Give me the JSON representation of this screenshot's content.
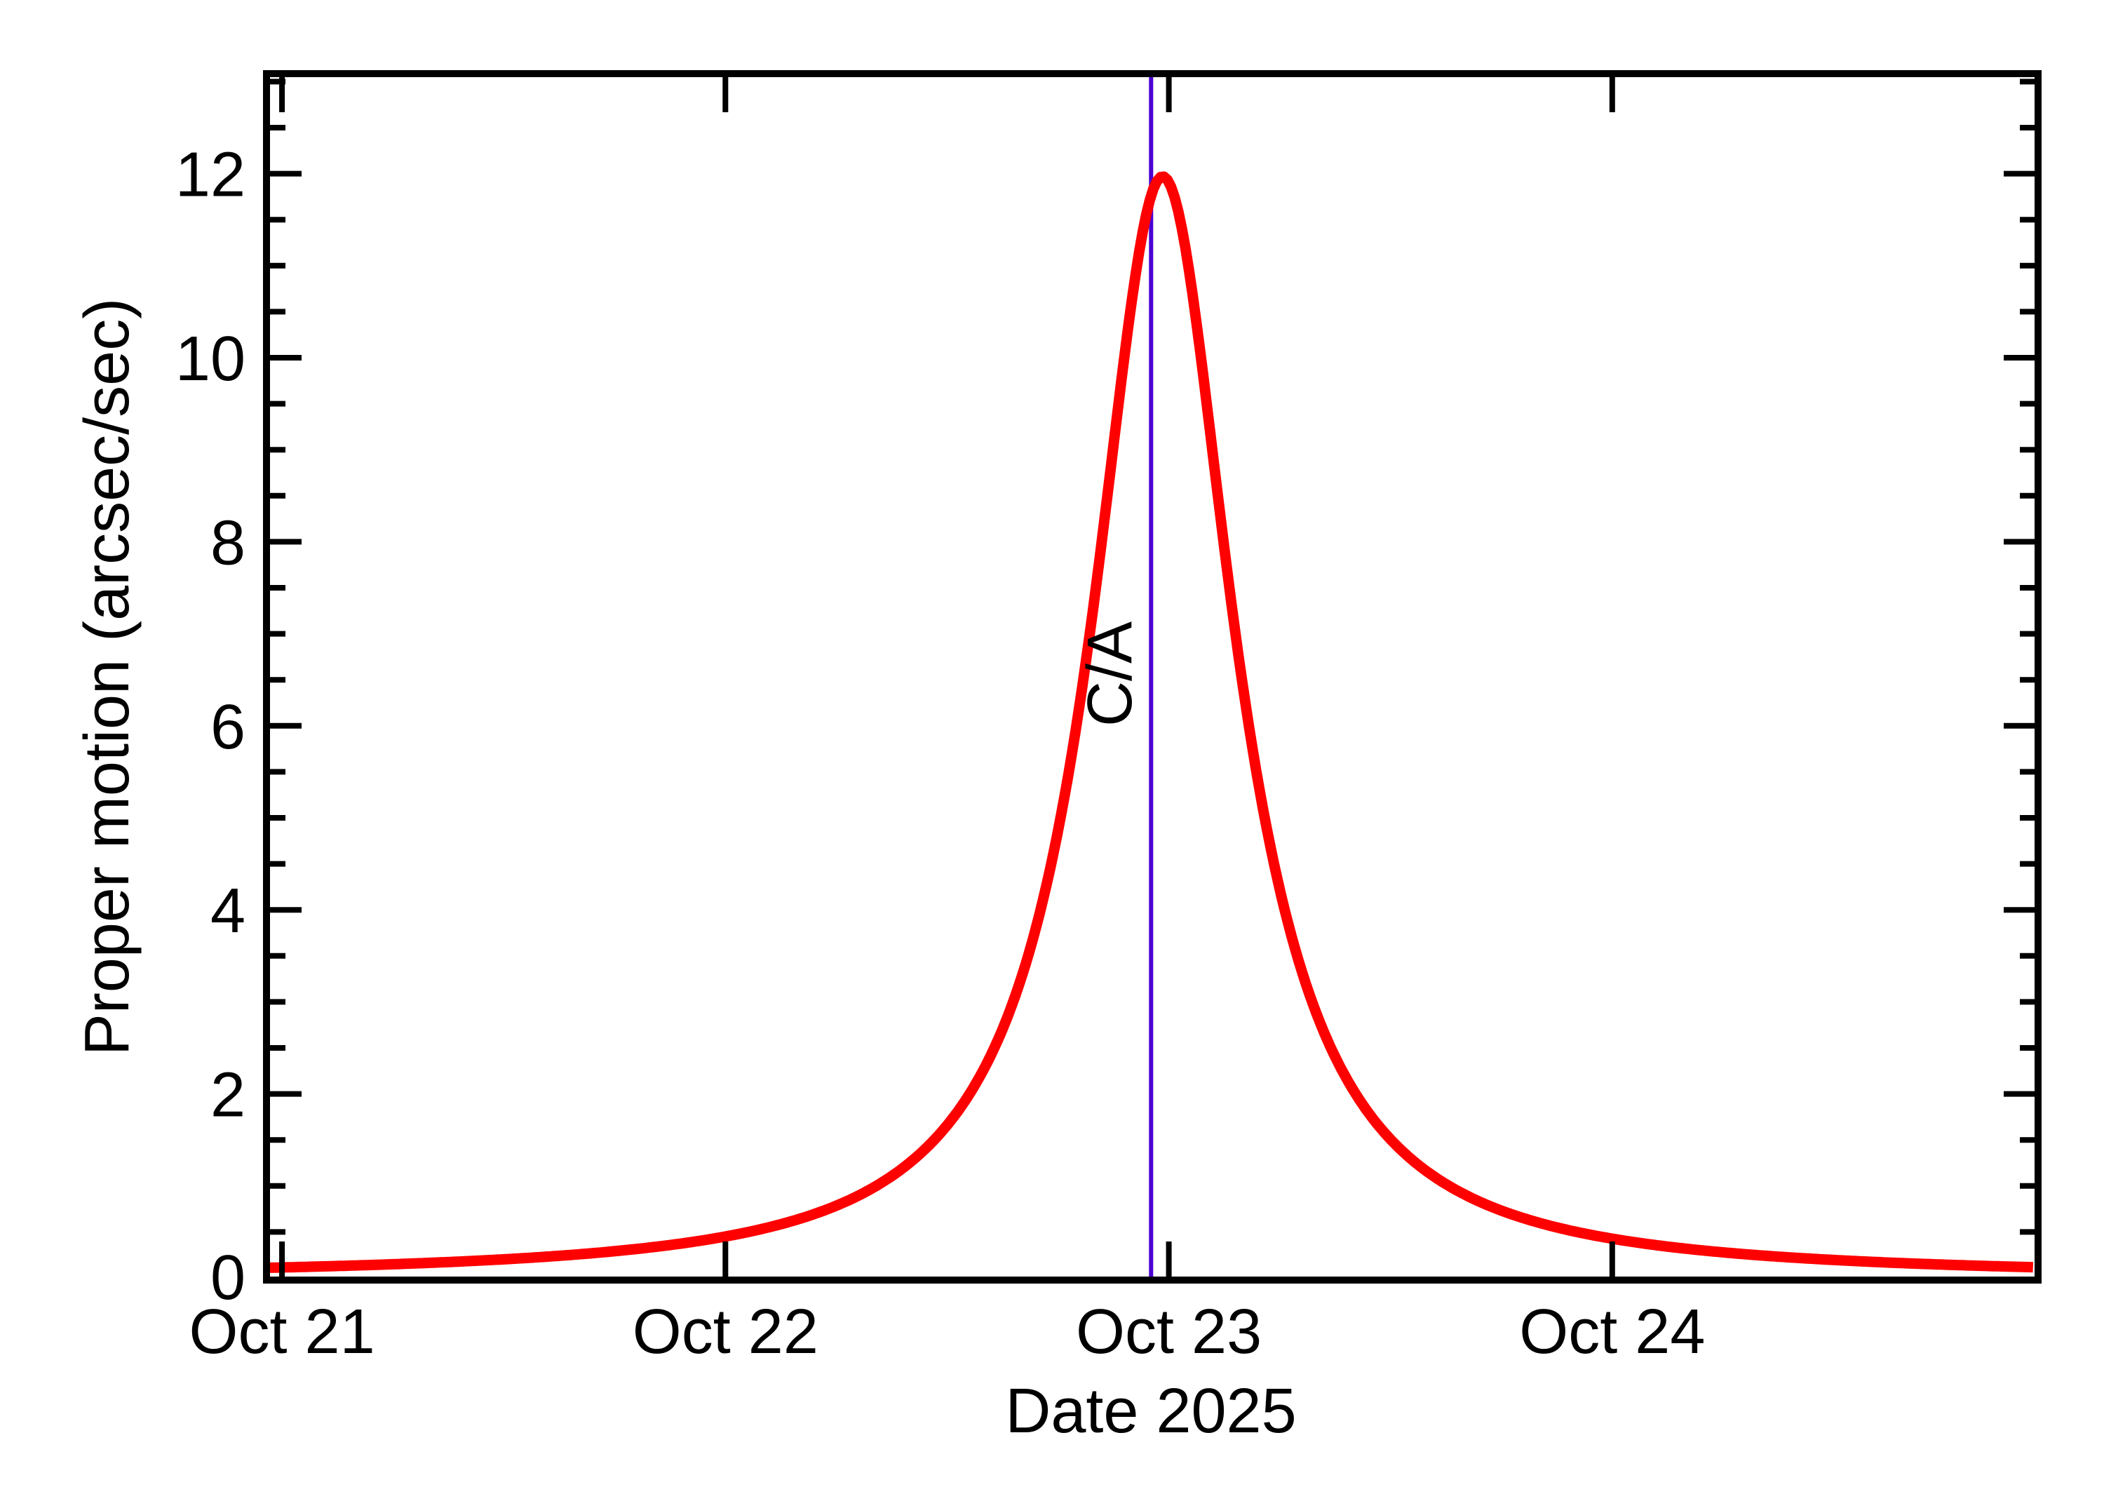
{
  "page": {
    "background": "#ffffff"
  },
  "chart": {
    "x_title": "Date 2025",
    "y_title": "Proper motion (arcsec/sec)",
    "axis_color": "#000000",
    "x_range_days_october": [
      20.973,
      24.954
    ],
    "y_range": [
      0,
      13.05
    ],
    "x_ticks": [
      {
        "day": 21,
        "label": "Oct 21"
      },
      {
        "day": 22,
        "label": "Oct 22"
      },
      {
        "day": 23,
        "label": "Oct 23"
      },
      {
        "day": 24,
        "label": "Oct 24"
      }
    ],
    "y_major_ticks": [
      0,
      2,
      4,
      6,
      8,
      10,
      12
    ],
    "y_minor_tick_step": 0.5,
    "annotation": {
      "text": "C/A",
      "day": 22.96,
      "color": "#4b00d2"
    },
    "curve": {
      "color": "#ff0000",
      "model": "lorentzian",
      "peak_arcsec_per_sec": 11.97,
      "peak_day": 22.986,
      "half_width_days": 0.195
    }
  },
  "chart_data": {
    "type": "line",
    "title": "",
    "xlabel": "Date 2025",
    "ylabel": "Proper motion (arcsec/sec)",
    "x_tick_labels": [
      "Oct 21",
      "Oct 22",
      "Oct 23",
      "Oct 24"
    ],
    "xlim_days_october": [
      20.973,
      24.954
    ],
    "ylim": [
      0,
      13.05
    ],
    "grid": false,
    "legend": "none",
    "series": [
      {
        "name": "proper motion",
        "color": "#ff0000",
        "model": "lorentzian: y = 11.97 / (1 + ((t - 22.986)/0.195)^2)",
        "x_days_october": [
          21.0,
          21.5,
          22.0,
          22.25,
          22.5,
          22.6,
          22.7,
          22.8,
          22.9,
          22.96,
          22.986,
          23.01,
          23.1,
          23.2,
          23.3,
          23.5,
          23.75,
          24.0,
          24.5,
          24.95
        ],
        "y_arcsec_per_sec": [
          0.11,
          0.2,
          0.45,
          0.79,
          1.67,
          2.44,
          3.82,
          6.3,
          10.06,
          11.78,
          11.97,
          11.78,
          8.88,
          5.4,
          3.32,
          1.5,
          0.73,
          0.43,
          0.2,
          0.12
        ]
      }
    ],
    "annotations": [
      {
        "text": "C/A",
        "type": "vertical-line",
        "x_day_october": 22.96,
        "color": "#4b00d2"
      }
    ]
  }
}
